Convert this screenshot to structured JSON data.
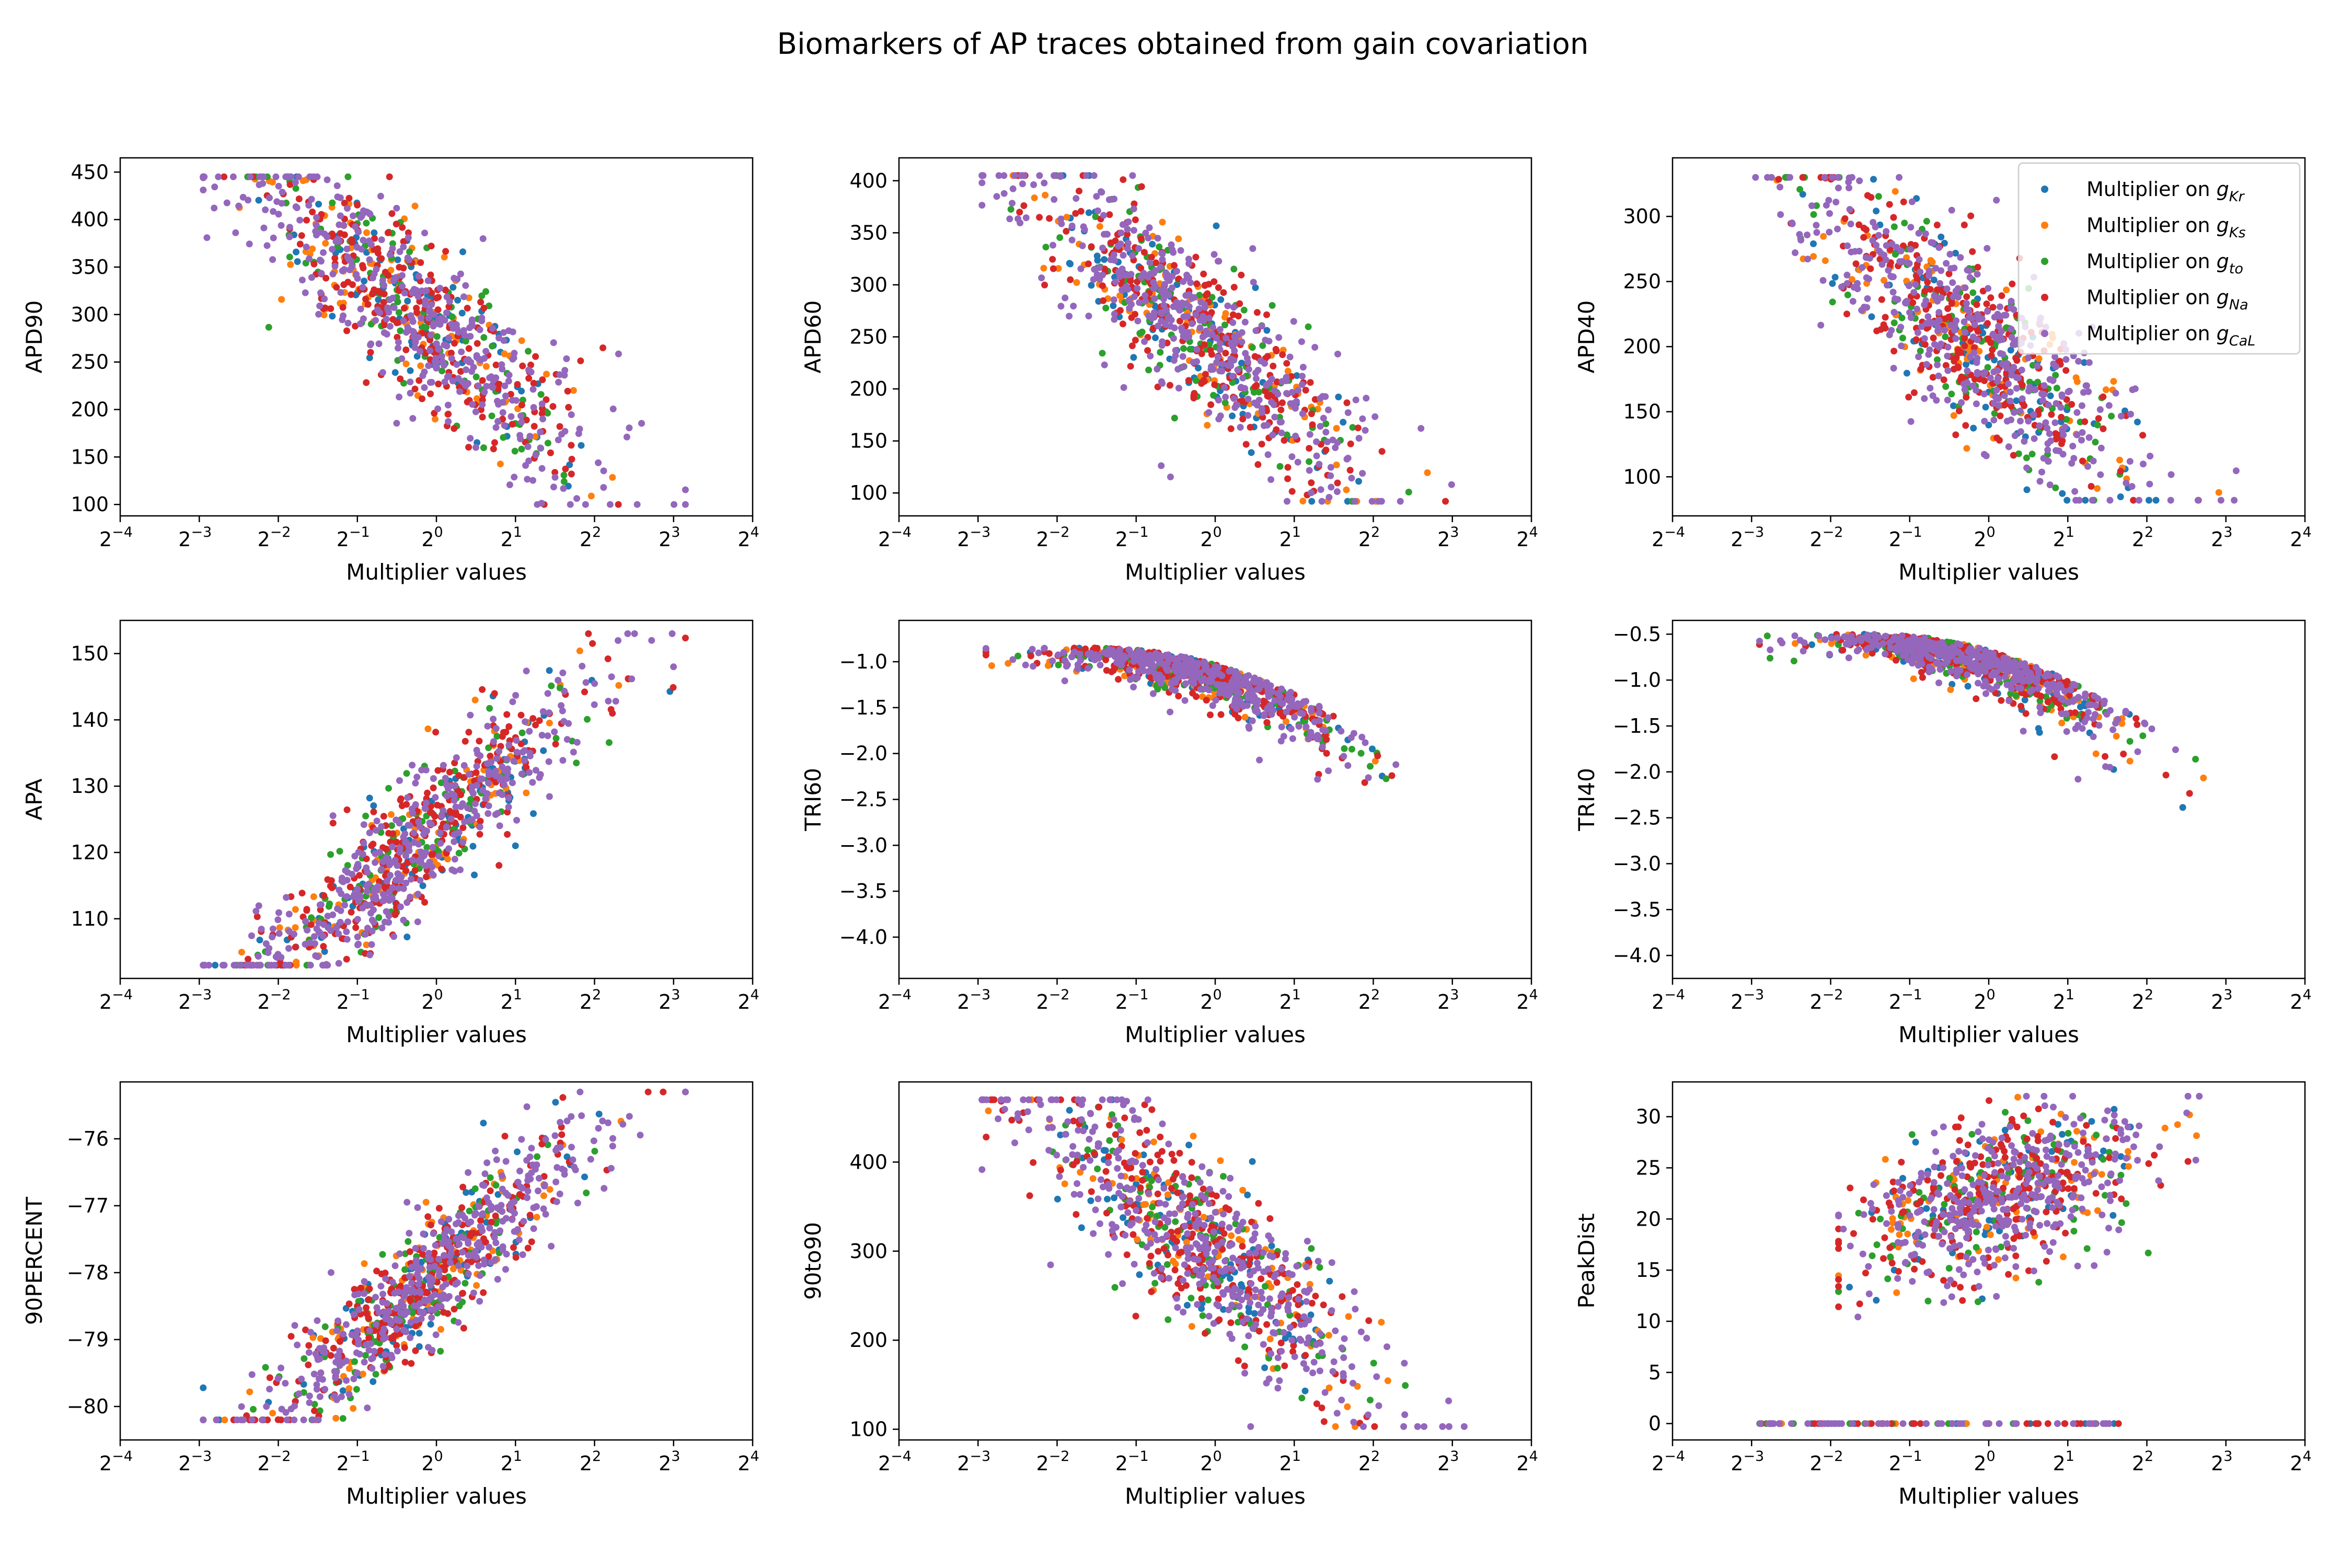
{
  "figure": {
    "title": "Biomarkers of AP traces obtained from gain covariation"
  },
  "legend": {
    "placement": "upper-right of top-right panel",
    "entries": [
      {
        "prefix": "Multiplier on ",
        "symbol": "g",
        "sub": "Kr",
        "color": "#1f77b4"
      },
      {
        "prefix": "Multiplier on ",
        "symbol": "g",
        "sub": "Ks",
        "color": "#ff7f0e"
      },
      {
        "prefix": "Multiplier on ",
        "symbol": "g",
        "sub": "to",
        "color": "#2ca02c"
      },
      {
        "prefix": "Multiplier on ",
        "symbol": "g",
        "sub": "Na",
        "color": "#d62728"
      },
      {
        "prefix": "Multiplier on ",
        "symbol": "g",
        "sub": "CaL",
        "color": "#9467bd"
      }
    ]
  },
  "chart_data": [
    {
      "type": "scatter",
      "xscale": "log2",
      "xlabel": "Multiplier  values",
      "ylabel": "APD90",
      "xlim": [
        0.0625,
        16
      ],
      "ylim": [
        88,
        465
      ],
      "yticks": [
        "100",
        "150",
        "200",
        "250",
        "300",
        "350",
        "400",
        "450"
      ],
      "shape": "decreasing",
      "yTop": 445,
      "yBottom": 100,
      "centerSpan": 115,
      "y0": 280,
      "slope": -65
    },
    {
      "type": "scatter",
      "xscale": "log2",
      "xlabel": "Multiplier  values",
      "ylabel": "APD60",
      "xlim": [
        0.0625,
        16
      ],
      "ylim": [
        78,
        422
      ],
      "yticks": [
        "100",
        "150",
        "200",
        "250",
        "300",
        "350",
        "400"
      ],
      "shape": "decreasing",
      "yTop": 405,
      "yBottom": 92,
      "centerSpan": 105,
      "y0": 245,
      "slope": -60
    },
    {
      "type": "scatter",
      "xscale": "log2",
      "xlabel": "Multiplier  values",
      "ylabel": "APD40",
      "xlim": [
        0.0625,
        16
      ],
      "ylim": [
        70,
        345
      ],
      "yticks": [
        "100",
        "150",
        "200",
        "250",
        "300"
      ],
      "shape": "decreasing",
      "yTop": 330,
      "yBottom": 82,
      "centerSpan": 85,
      "y0": 195,
      "slope": -48
    },
    {
      "type": "scatter",
      "xscale": "log2",
      "xlabel": "Multiplier  values",
      "ylabel": "APA",
      "xlim": [
        0.0625,
        16
      ],
      "ylim": [
        101,
        155
      ],
      "yticks": [
        "110",
        "120",
        "130",
        "140",
        "150"
      ],
      "shape": "increasing",
      "yTop": 153,
      "yBottom": 103,
      "centerSpan": 13,
      "y0": 124,
      "slope": 10
    },
    {
      "type": "scatter",
      "xscale": "log2",
      "xlabel": "Multiplier  values",
      "ylabel": "TRI60",
      "xlim": [
        0.0625,
        16
      ],
      "ylim": [
        -4.45,
        -0.55
      ],
      "yticks": [
        "-1.0",
        "-1.5",
        "-2.0",
        "-2.5",
        "-3.0",
        "-3.5",
        "-4.0"
      ],
      "shape": "droop",
      "yTop": -0.85,
      "yBottom": -3.1
    },
    {
      "type": "scatter",
      "xscale": "log2",
      "xlabel": "Multiplier  values",
      "ylabel": "TRI40",
      "xlim": [
        0.0625,
        16
      ],
      "ylim": [
        -4.25,
        -0.35
      ],
      "yticks": [
        "-0.5",
        "-1.0",
        "-1.5",
        "-2.0",
        "-2.5",
        "-3.0",
        "-3.5",
        "-4.0"
      ],
      "shape": "droop",
      "yTop": -0.5,
      "yBottom": -2.95
    },
    {
      "type": "scatter",
      "xscale": "log2",
      "xlabel": "Multiplier  values",
      "ylabel": "90PERCENT",
      "xlim": [
        0.0625,
        16
      ],
      "ylim": [
        -80.5,
        -75.15
      ],
      "yticks": [
        "-80",
        "-79",
        "-78",
        "-77",
        "-76"
      ],
      "shape": "increasing",
      "yTop": -75.3,
      "yBottom": -80.2,
      "centerSpan": 1.2,
      "y0": -78.0,
      "slope": 1.0
    },
    {
      "type": "scatter",
      "xscale": "log2",
      "xlabel": "Multiplier  values",
      "ylabel": "90to90",
      "xlim": [
        0.0625,
        16
      ],
      "ylim": [
        88,
        490
      ],
      "yticks": [
        "100",
        "200",
        "300",
        "400"
      ],
      "shape": "decreasing",
      "yTop": 470,
      "yBottom": 103,
      "centerSpan": 120,
      "y0": 295,
      "slope": -72
    },
    {
      "type": "scatter",
      "xscale": "log2",
      "xlabel": "Multiplier  values",
      "ylabel": "PeakDist",
      "xlim": [
        0.0625,
        16
      ],
      "ylim": [
        -1.6,
        33.4
      ],
      "yticks": [
        "0",
        "5",
        "10",
        "15",
        "20",
        "25",
        "30"
      ],
      "shape": "peakdist",
      "yTop": 32,
      "yBottom": 7
    }
  ]
}
